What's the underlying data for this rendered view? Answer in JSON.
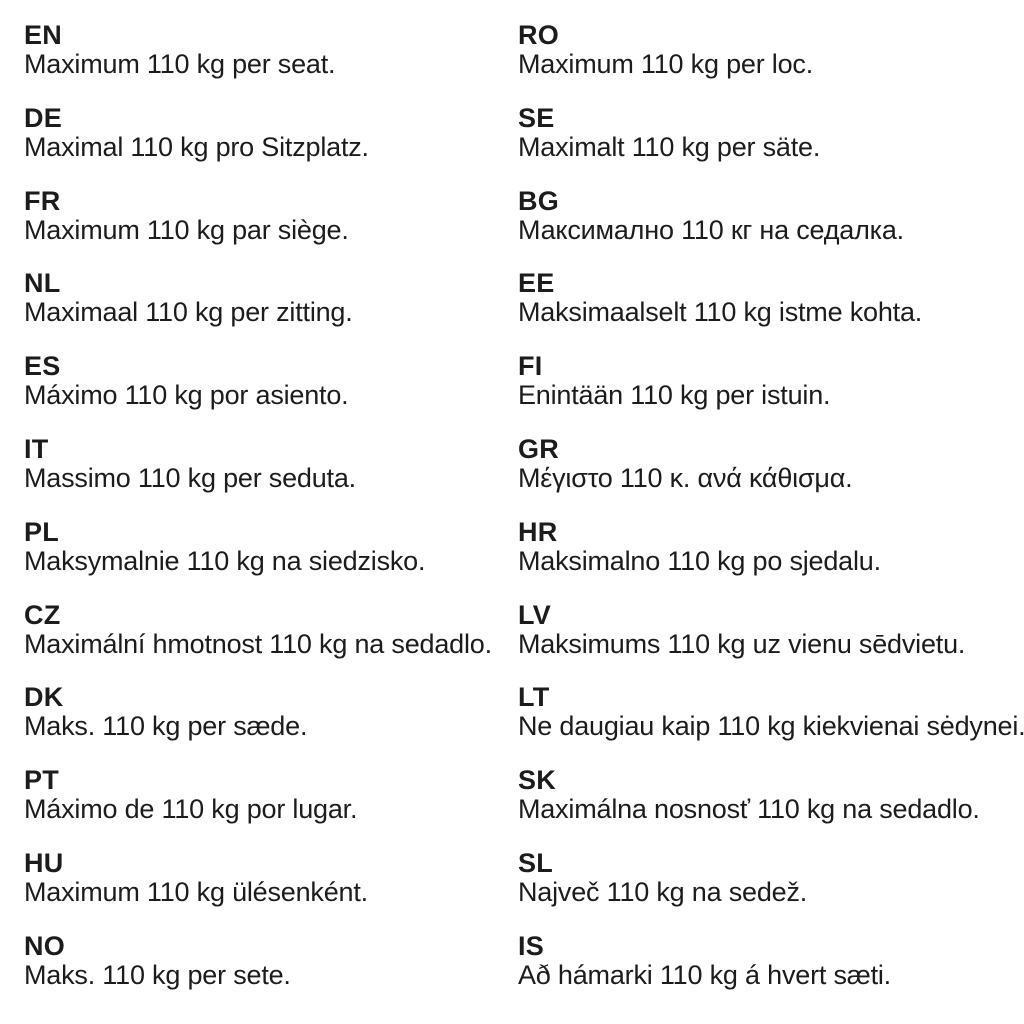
{
  "page": {
    "background_color": "#ffffff",
    "text_color": "#1c1c1c"
  },
  "columns": [
    {
      "entries": [
        {
          "code": "EN",
          "text": "Maximum 110 kg per seat."
        },
        {
          "code": "DE",
          "text": "Maximal 110 kg pro Sitzplatz."
        },
        {
          "code": "FR",
          "text": "Maximum 110 kg par siège."
        },
        {
          "code": "NL",
          "text": "Maximaal 110 kg per zitting."
        },
        {
          "code": "ES",
          "text": "Máximo 110 kg por asiento."
        },
        {
          "code": "IT",
          "text": "Massimo 110 kg per seduta."
        },
        {
          "code": "PL",
          "text": "Maksymalnie 110 kg na siedzisko."
        },
        {
          "code": "CZ",
          "text": "Maximální hmotnost 110 kg na sedadlo."
        },
        {
          "code": "DK",
          "text": "Maks. 110 kg per sæde."
        },
        {
          "code": "PT",
          "text": "Máximo de 110 kg por lugar."
        },
        {
          "code": "HU",
          "text": "Maximum 110 kg ülésenként."
        },
        {
          "code": "NO",
          "text": "Maks. 110 kg per sete."
        }
      ]
    },
    {
      "entries": [
        {
          "code": "RO",
          "text": "Maximum 110 kg per loc."
        },
        {
          "code": "SE",
          "text": "Maximalt 110 kg per säte."
        },
        {
          "code": "BG",
          "text": "Максимално 110 кг на седалка."
        },
        {
          "code": "EE",
          "text": "Maksimaalselt 110 kg istme kohta."
        },
        {
          "code": "FI",
          "text": "Enintään 110 kg per istuin."
        },
        {
          "code": "GR",
          "text": "Μέγιστο 110 κ. ανά κάθισμα."
        },
        {
          "code": "HR",
          "text": "Maksimalno 110 kg po sjedalu."
        },
        {
          "code": "LV",
          "text": "Maksimums 110 kg uz vienu sēdvietu."
        },
        {
          "code": "LT",
          "text": "Ne daugiau kaip 110 kg kiekvienai sėdynei."
        },
        {
          "code": "SK",
          "text": "Maximálna nosnosť 110 kg na sedadlo."
        },
        {
          "code": "SL",
          "text": "Največ 110 kg na sedež."
        },
        {
          "code": "IS",
          "text": "Að hámarki 110 kg á hvert sæti."
        }
      ]
    }
  ]
}
